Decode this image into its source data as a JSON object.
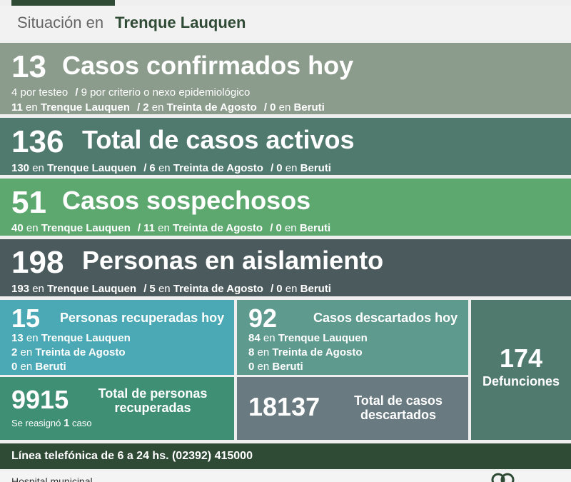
{
  "header": {
    "label": "Situación en",
    "city": "Trenque Lauquen"
  },
  "confirmados": {
    "number": "13",
    "title": "Casos confirmados hoy",
    "testeo_n": "4",
    "testeo_t": "por testeo",
    "criterio_n": "9",
    "criterio_t": "por criterio o nexo epidemiológico",
    "tl_n": "11",
    "ta_n": "2",
    "be_n": "0"
  },
  "activos": {
    "number": "136",
    "title": "Total de casos activos",
    "tl_n": "130",
    "ta_n": "6",
    "be_n": "0"
  },
  "sospechosos": {
    "number": "51",
    "title": "Casos sospechosos",
    "tl_n": "40",
    "ta_n": "11",
    "be_n": "0"
  },
  "aislamiento": {
    "number": "198",
    "title": "Personas en aislamiento",
    "tl_n": "193",
    "ta_n": "5",
    "be_n": "0"
  },
  "places": {
    "en": "en",
    "tl": "Trenque Lauquen",
    "ta": "Treinta de Agosto",
    "be": "Beruti",
    "sep": "/"
  },
  "recuperados_hoy": {
    "number": "15",
    "title": "Personas recuperadas hoy",
    "tl_n": "13",
    "ta_n": "2",
    "be_n": "0"
  },
  "descartados_hoy": {
    "number": "92",
    "title": "Casos descartados hoy",
    "tl_n": "84",
    "ta_n": "8",
    "be_n": "0"
  },
  "total_recuperados": {
    "number": "9915",
    "title_1": "Total de personas",
    "title_2": "recuperadas",
    "note_a": "Se reasignó",
    "note_n": "1",
    "note_b": "caso"
  },
  "total_descartados": {
    "number": "18137",
    "title_1": "Total de casos",
    "title_2": "descartados"
  },
  "defunciones": {
    "number": "174",
    "title": "Defunciones"
  },
  "phone": "Línea telefónica de 6 a 24 hs. (02392) 415000",
  "footer": {
    "hospital": "Hospital municipal"
  },
  "colors": {
    "dark_green": "#2f4a35",
    "band_confirmados": "#8b9b8c",
    "band_activos": "#517a6f",
    "band_sospechosos": "#5ca86f",
    "band_aislamiento": "#4b5a5c",
    "recuperados": "#4aa9b5",
    "descartados": "#5f9a8f",
    "total_recuperados": "#3f8f74",
    "total_descartados": "#697a80"
  }
}
